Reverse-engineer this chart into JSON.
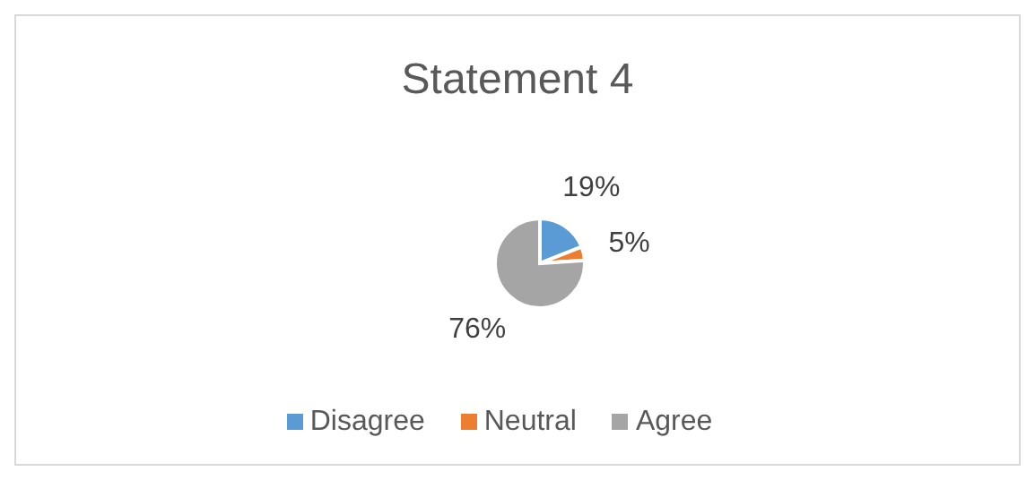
{
  "chart_data": {
    "type": "pie",
    "title": "Statement 4",
    "categories": [
      "Disagree",
      "Neutral",
      "Agree"
    ],
    "values": [
      19,
      5,
      76
    ],
    "colors": [
      "#5b9bd5",
      "#ed7d31",
      "#a5a5a5"
    ],
    "value_labels": [
      "19%",
      "5%",
      "76%"
    ],
    "legend": "bottom"
  }
}
